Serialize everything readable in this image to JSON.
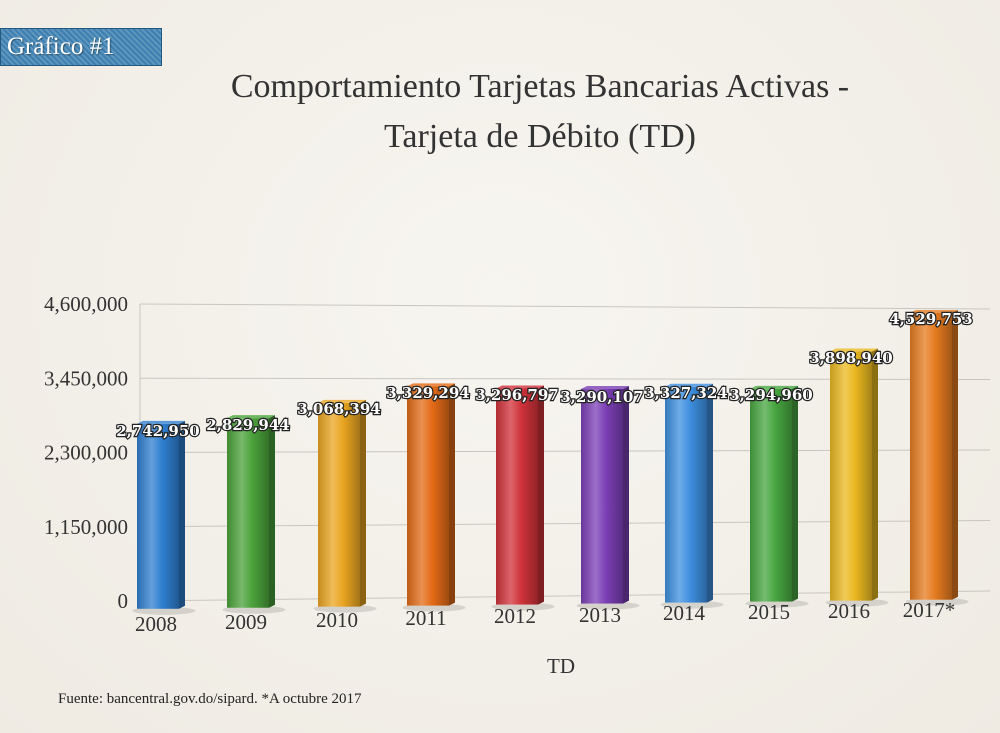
{
  "badge": "Gráfico #1",
  "title_line1": "Comportamiento Tarjetas Bancarias Activas -",
  "title_line2": "Tarjeta de Débito (TD)",
  "source": "Fuente: bancentral.gov.do/sipard.  *A octubre 2017",
  "chart_data": {
    "type": "bar",
    "title": "Comportamiento Tarjetas Bancarias Activas - Tarjeta de Débito (TD)",
    "xlabel": "TD",
    "ylabel": "",
    "ylim": [
      0,
      4600000
    ],
    "yticks": [
      "0",
      "1,150,000",
      "2,300,000",
      "3,450,000",
      "4,600,000"
    ],
    "grid": true,
    "categories": [
      "2008",
      "2009",
      "2010",
      "2011",
      "2012",
      "2013",
      "2014",
      "2015",
      "2016",
      "2017*"
    ],
    "values": [
      2742950,
      2829944,
      3068394,
      3329294,
      3296797,
      3290107,
      3327324,
      3294960,
      3898940,
      4529753
    ],
    "labels": [
      "2,742,950",
      "2,829,944",
      "3,068,394",
      "3,329,294",
      "3,296,797",
      "3,290,107",
      "3,327,324",
      "3,294,960",
      "3,898,940",
      "4,529,753"
    ],
    "colors": [
      "#2f7fd0",
      "#4aa23a",
      "#e9a521",
      "#e36b17",
      "#d0323a",
      "#7b3fb5",
      "#3e8fe0",
      "#47a640",
      "#e9b820",
      "#e57b1f"
    ]
  }
}
